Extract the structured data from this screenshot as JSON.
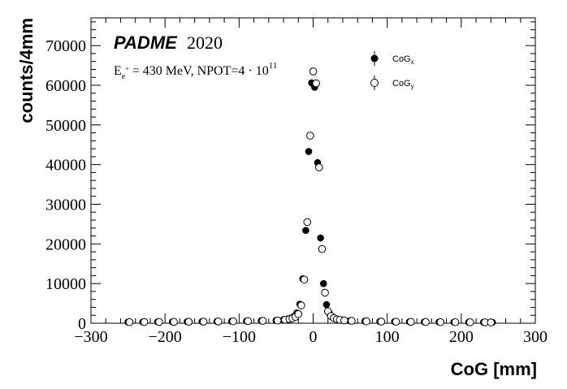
{
  "chart_data": {
    "type": "scatter",
    "brand": "PADME",
    "year": "2020",
    "subtitle": {
      "prefix": "E",
      "prefix_sub": "e",
      "prefix_sup": "+",
      "main": " = 430 MeV, NPOT=4 · 10",
      "exponent": "11"
    },
    "xlabel": "CoG [mm]",
    "ylabel": "counts/4mm",
    "xlim": [
      -300,
      300
    ],
    "ylim": [
      0,
      77000
    ],
    "x_ticks": [
      -300,
      -200,
      -100,
      0,
      100,
      200,
      300
    ],
    "x_tick_labels": [
      "−300",
      "−200",
      "−100",
      "0",
      "100",
      "200",
      "300"
    ],
    "y_ticks": [
      0,
      10000,
      20000,
      30000,
      40000,
      50000,
      60000,
      70000
    ],
    "y_tick_labels": [
      "0",
      "10000",
      "20000",
      "30000",
      "40000",
      "50000",
      "60000",
      "70000"
    ],
    "legend_position": "top-right",
    "series": [
      {
        "name_main": "CoG",
        "name_sub": "x",
        "marker": "filled-circle",
        "x": [
          -250,
          -230,
          -210,
          -190,
          -170,
          -150,
          -130,
          -110,
          -90,
          -70,
          -50,
          -40,
          -34,
          -30,
          -26,
          -22,
          -18,
          -14,
          -10,
          -6,
          -2,
          2,
          6,
          10,
          14,
          18,
          22,
          26,
          30,
          34,
          40,
          50,
          70,
          90,
          110,
          130,
          150,
          170,
          190,
          210,
          230,
          242
        ],
        "y": [
          300,
          320,
          340,
          360,
          390,
          420,
          460,
          500,
          560,
          620,
          700,
          900,
          1100,
          1300,
          1700,
          2600,
          4800,
          11200,
          23400,
          43300,
          60600,
          59500,
          40500,
          21500,
          10000,
          4700,
          2500,
          1600,
          1200,
          1000,
          800,
          650,
          520,
          450,
          400,
          360,
          330,
          300,
          280,
          260,
          240,
          220
        ]
      },
      {
        "name_main": "CoG",
        "name_sub": "y",
        "marker": "open-circle",
        "x": [
          -248,
          -228,
          -208,
          -188,
          -168,
          -148,
          -128,
          -108,
          -88,
          -68,
          -48,
          -38,
          -32,
          -28,
          -24,
          -20,
          -16,
          -12,
          -8,
          -4,
          0,
          4,
          8,
          12,
          16,
          20,
          24,
          28,
          32,
          36,
          42,
          52,
          72,
          92,
          112,
          132,
          152,
          172,
          192,
          212,
          232,
          240
        ],
        "y": [
          280,
          300,
          320,
          340,
          370,
          400,
          440,
          480,
          540,
          600,
          680,
          850,
          1050,
          1250,
          1600,
          2300,
          4500,
          11000,
          25500,
          47300,
          63500,
          60500,
          39300,
          18700,
          7700,
          3000,
          1800,
          1300,
          1000,
          850,
          700,
          600,
          480,
          420,
          370,
          340,
          310,
          280,
          260,
          240,
          220,
          200
        ]
      }
    ]
  }
}
